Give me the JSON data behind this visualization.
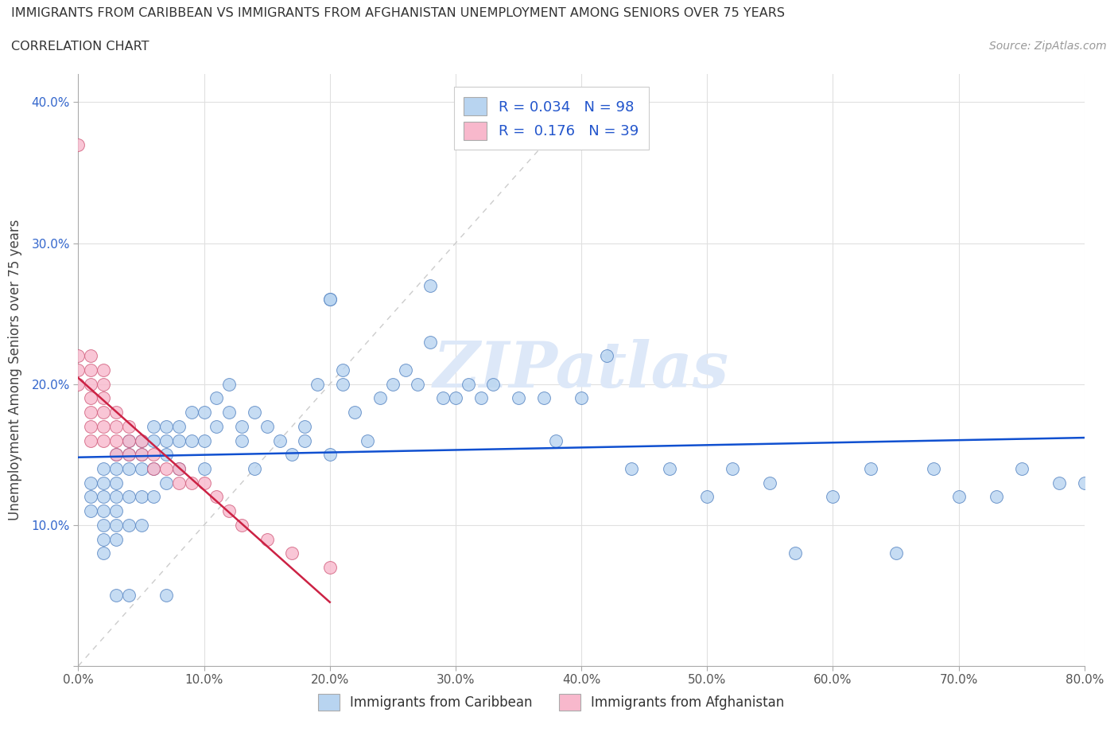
{
  "title_line1": "IMMIGRANTS FROM CARIBBEAN VS IMMIGRANTS FROM AFGHANISTAN UNEMPLOYMENT AMONG SENIORS OVER 75 YEARS",
  "title_line2": "CORRELATION CHART",
  "source_text": "Source: ZipAtlas.com",
  "ylabel": "Unemployment Among Seniors over 75 years",
  "xlim": [
    0,
    0.8
  ],
  "ylim": [
    0,
    0.42
  ],
  "xticks": [
    0.0,
    0.1,
    0.2,
    0.3,
    0.4,
    0.5,
    0.6,
    0.7,
    0.8
  ],
  "xticklabels": [
    "0.0%",
    "10.0%",
    "20.0%",
    "30.0%",
    "40.0%",
    "50.0%",
    "60.0%",
    "70.0%",
    "80.0%"
  ],
  "yticks": [
    0.0,
    0.1,
    0.2,
    0.3,
    0.4
  ],
  "yticklabels": [
    "",
    "10.0%",
    "20.0%",
    "30.0%",
    "40.0%"
  ],
  "caribbean_color": "#b8d4f0",
  "afghanistan_color": "#f8b8cc",
  "caribbean_edge": "#5080c0",
  "afghanistan_edge": "#d05878",
  "trend_caribbean_color": "#1050d0",
  "trend_afghanistan_color": "#cc2244",
  "diagonal_color": "#cccccc",
  "legend_R_caribbean": "0.034",
  "legend_N_caribbean": "98",
  "legend_R_afghanistan": "0.176",
  "legend_N_afghanistan": "39",
  "watermark_color": "#dde8f8",
  "caribbean_x": [
    0.01,
    0.01,
    0.01,
    0.02,
    0.02,
    0.02,
    0.02,
    0.02,
    0.02,
    0.02,
    0.03,
    0.03,
    0.03,
    0.03,
    0.03,
    0.03,
    0.03,
    0.04,
    0.04,
    0.04,
    0.04,
    0.04,
    0.05,
    0.05,
    0.05,
    0.05,
    0.05,
    0.06,
    0.06,
    0.06,
    0.06,
    0.07,
    0.07,
    0.07,
    0.07,
    0.08,
    0.08,
    0.08,
    0.09,
    0.09,
    0.1,
    0.1,
    0.11,
    0.11,
    0.12,
    0.12,
    0.13,
    0.13,
    0.14,
    0.15,
    0.16,
    0.17,
    0.18,
    0.18,
    0.19,
    0.2,
    0.2,
    0.21,
    0.21,
    0.22,
    0.23,
    0.24,
    0.25,
    0.26,
    0.27,
    0.28,
    0.29,
    0.3,
    0.31,
    0.32,
    0.33,
    0.35,
    0.37,
    0.38,
    0.4,
    0.42,
    0.44,
    0.47,
    0.5,
    0.52,
    0.55,
    0.57,
    0.6,
    0.63,
    0.65,
    0.68,
    0.7,
    0.73,
    0.75,
    0.78,
    0.8,
    0.28,
    0.2,
    0.14,
    0.1,
    0.07,
    0.04,
    0.03
  ],
  "caribbean_y": [
    0.12,
    0.13,
    0.11,
    0.14,
    0.13,
    0.12,
    0.11,
    0.1,
    0.09,
    0.08,
    0.15,
    0.14,
    0.13,
    0.12,
    0.11,
    0.1,
    0.09,
    0.16,
    0.15,
    0.14,
    0.12,
    0.1,
    0.16,
    0.15,
    0.14,
    0.12,
    0.1,
    0.17,
    0.16,
    0.14,
    0.12,
    0.17,
    0.16,
    0.15,
    0.13,
    0.17,
    0.16,
    0.14,
    0.18,
    0.16,
    0.18,
    0.16,
    0.19,
    0.17,
    0.2,
    0.18,
    0.17,
    0.16,
    0.18,
    0.17,
    0.16,
    0.15,
    0.17,
    0.16,
    0.2,
    0.26,
    0.15,
    0.21,
    0.2,
    0.18,
    0.16,
    0.19,
    0.2,
    0.21,
    0.2,
    0.23,
    0.19,
    0.19,
    0.2,
    0.19,
    0.2,
    0.19,
    0.19,
    0.16,
    0.19,
    0.22,
    0.14,
    0.14,
    0.12,
    0.14,
    0.13,
    0.08,
    0.12,
    0.14,
    0.08,
    0.14,
    0.12,
    0.12,
    0.14,
    0.13,
    0.13,
    0.27,
    0.26,
    0.14,
    0.14,
    0.05,
    0.05,
    0.05
  ],
  "afghanistan_x": [
    0.0,
    0.0,
    0.0,
    0.0,
    0.01,
    0.01,
    0.01,
    0.01,
    0.01,
    0.01,
    0.01,
    0.02,
    0.02,
    0.02,
    0.02,
    0.02,
    0.02,
    0.03,
    0.03,
    0.03,
    0.03,
    0.04,
    0.04,
    0.04,
    0.05,
    0.05,
    0.06,
    0.06,
    0.07,
    0.08,
    0.08,
    0.09,
    0.1,
    0.11,
    0.12,
    0.13,
    0.15,
    0.17,
    0.2
  ],
  "afghanistan_y": [
    0.37,
    0.22,
    0.21,
    0.2,
    0.22,
    0.21,
    0.2,
    0.19,
    0.18,
    0.17,
    0.16,
    0.21,
    0.2,
    0.19,
    0.18,
    0.17,
    0.16,
    0.18,
    0.17,
    0.16,
    0.15,
    0.17,
    0.16,
    0.15,
    0.16,
    0.15,
    0.15,
    0.14,
    0.14,
    0.14,
    0.13,
    0.13,
    0.13,
    0.12,
    0.11,
    0.1,
    0.09,
    0.08,
    0.07
  ]
}
